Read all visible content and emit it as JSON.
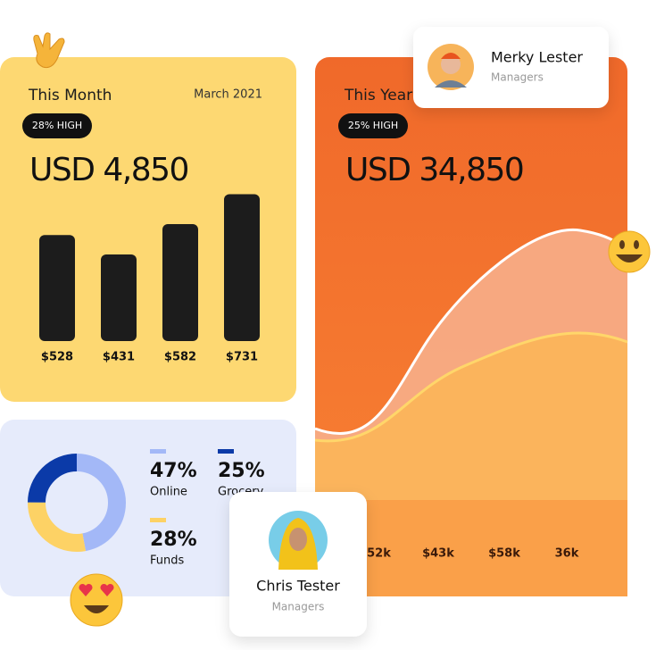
{
  "this_month": {
    "title": "This Month",
    "date": "March 2021",
    "badge": "28% HIGH",
    "amount": "USD 4,850",
    "bars": {
      "values": [
        528,
        431,
        582,
        731
      ],
      "value_labels": [
        "$528",
        "$431",
        "$582",
        "$731"
      ],
      "color": "#1c1c1c"
    }
  },
  "this_year": {
    "title": "This Year",
    "badge": "25% HIGH",
    "amount": "USD 34,850",
    "x_labels": [
      "$52k",
      "$43k",
      "$58k",
      "36k"
    ]
  },
  "breakdown": {
    "segments": [
      {
        "name": "Online",
        "value": 47,
        "value_label": "47%",
        "color": "#a3b8f7"
      },
      {
        "name": "Funds",
        "value": 28,
        "value_label": "28%",
        "color": "#fdd265"
      },
      {
        "name": "Grocery",
        "value": 25,
        "value_label": "25%",
        "color": "#0b3aa8"
      }
    ]
  },
  "profiles": [
    {
      "name": "Merky Lester",
      "role": "Managers"
    },
    {
      "name": "Chris Tester",
      "role": "Managers"
    }
  ]
}
